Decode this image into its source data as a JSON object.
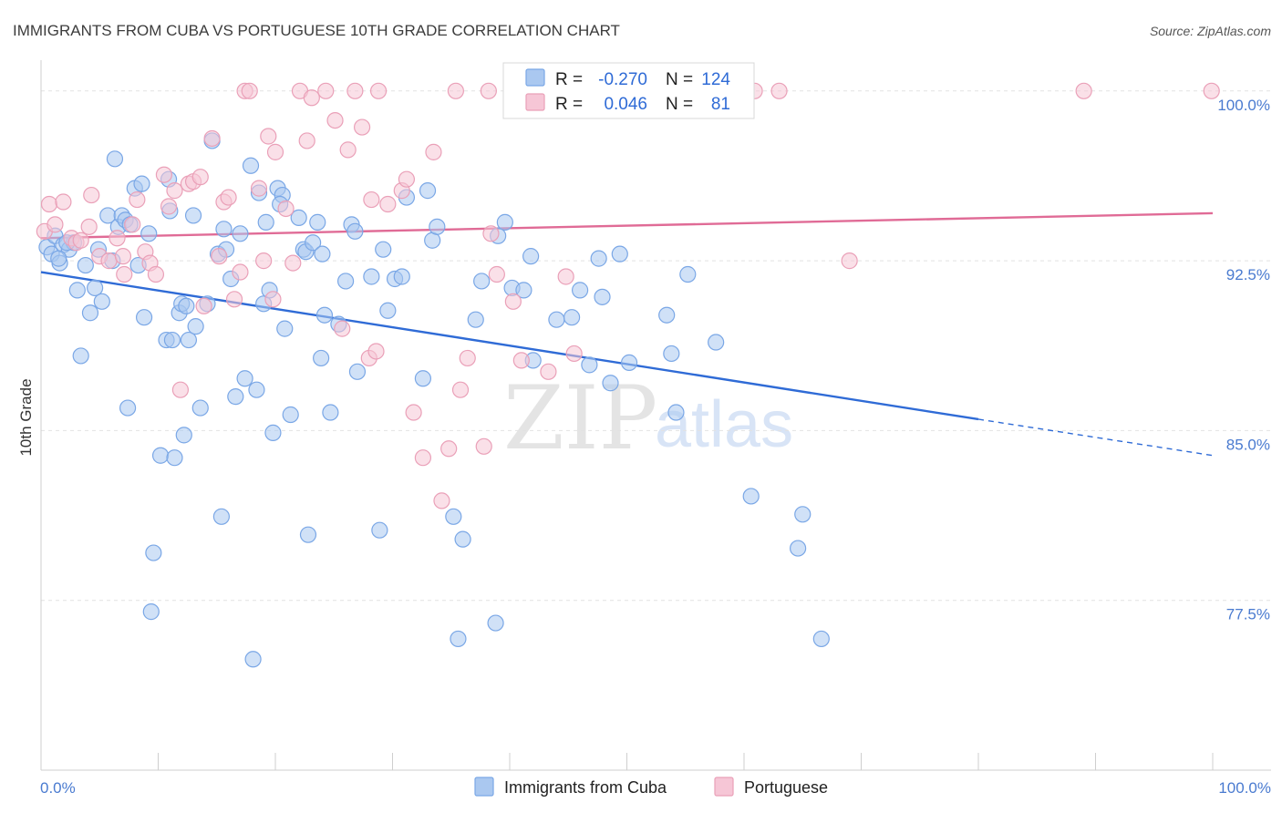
{
  "chart_data": {
    "type": "scatter",
    "title": "IMMIGRANTS FROM CUBA VS PORTUGUESE 10TH GRADE CORRELATION CHART",
    "source": "Source: ZipAtlas.com",
    "ylabel": "10th Grade",
    "xlabel": "",
    "xlim": [
      0,
      100
    ],
    "ylim": [
      70,
      101.2
    ],
    "y_ticks": [
      {
        "value": 100,
        "label": "100.0%"
      },
      {
        "value": 92.5,
        "label": "92.5%"
      },
      {
        "value": 85,
        "label": "85.0%"
      },
      {
        "value": 77.5,
        "label": "77.5%"
      }
    ],
    "x_tick_labels": {
      "min": "0.0%",
      "max": "100.0%"
    },
    "watermark": {
      "zip": "ZIP",
      "atlas": "atlas"
    },
    "legend": {
      "r_label": "R =",
      "n_label": "N =",
      "entries": [
        {
          "r": "-0.270",
          "n": "124"
        },
        {
          "r": "0.046",
          "n": "81"
        }
      ]
    },
    "series": [
      {
        "name": "Immigrants from Cuba",
        "color": "#7aa7e6",
        "fill": "#aac8f0",
        "trend": {
          "x0": 0,
          "y0": 92.0,
          "x1": 80,
          "y1": 85.5,
          "dash_to_x": 100,
          "dash_to_y": 83.9,
          "color": "#2f6bd6"
        },
        "points": [
          [
            0.5,
            93.1
          ],
          [
            0.9,
            92.8
          ],
          [
            1.2,
            93.6
          ],
          [
            1.6,
            92.4
          ],
          [
            1.9,
            93.2
          ],
          [
            2.4,
            93.0
          ],
          [
            2.8,
            93.3
          ],
          [
            3.1,
            91.2
          ],
          [
            3.4,
            88.3
          ],
          [
            3.8,
            92.3
          ],
          [
            4.2,
            90.2
          ],
          [
            4.6,
            91.3
          ],
          [
            4.9,
            93.0
          ],
          [
            5.2,
            90.7
          ],
          [
            5.7,
            94.5
          ],
          [
            6.1,
            92.5
          ],
          [
            6.3,
            97.0
          ],
          [
            6.6,
            94.0
          ],
          [
            6.9,
            94.5
          ],
          [
            7.2,
            94.3
          ],
          [
            7.6,
            94.1
          ],
          [
            7.4,
            86.0
          ],
          [
            8.0,
            95.7
          ],
          [
            8.3,
            92.3
          ],
          [
            8.6,
            95.9
          ],
          [
            8.8,
            90.0
          ],
          [
            9.2,
            93.7
          ],
          [
            9.6,
            79.6
          ],
          [
            9.4,
            77.0
          ],
          [
            10.2,
            83.9
          ],
          [
            10.7,
            89.0
          ],
          [
            10.9,
            96.1
          ],
          [
            11.0,
            94.7
          ],
          [
            11.2,
            89.0
          ],
          [
            11.4,
            83.8
          ],
          [
            11.8,
            90.2
          ],
          [
            12.0,
            90.6
          ],
          [
            12.2,
            84.8
          ],
          [
            12.6,
            89.0
          ],
          [
            13.0,
            94.5
          ],
          [
            13.2,
            89.6
          ],
          [
            13.6,
            86.0
          ],
          [
            14.2,
            90.6
          ],
          [
            14.6,
            97.8
          ],
          [
            15.1,
            92.8
          ],
          [
            15.4,
            81.2
          ],
          [
            15.6,
            93.9
          ],
          [
            15.8,
            93.0
          ],
          [
            16.2,
            91.7
          ],
          [
            16.6,
            86.5
          ],
          [
            17.0,
            93.7
          ],
          [
            17.4,
            87.3
          ],
          [
            17.9,
            96.7
          ],
          [
            18.1,
            74.9
          ],
          [
            18.4,
            86.8
          ],
          [
            18.6,
            95.5
          ],
          [
            19.0,
            90.6
          ],
          [
            19.2,
            94.2
          ],
          [
            19.5,
            91.2
          ],
          [
            19.8,
            84.9
          ],
          [
            20.2,
            95.7
          ],
          [
            20.6,
            95.4
          ],
          [
            20.4,
            95.0
          ],
          [
            20.8,
            89.5
          ],
          [
            21.3,
            85.7
          ],
          [
            22.0,
            94.4
          ],
          [
            22.4,
            93.0
          ],
          [
            22.6,
            92.9
          ],
          [
            22.8,
            80.4
          ],
          [
            23.2,
            93.3
          ],
          [
            23.6,
            94.2
          ],
          [
            23.9,
            88.2
          ],
          [
            24.2,
            90.1
          ],
          [
            24.7,
            85.8
          ],
          [
            25.4,
            89.7
          ],
          [
            26.0,
            91.6
          ],
          [
            26.5,
            94.1
          ],
          [
            26.8,
            93.8
          ],
          [
            27.0,
            87.6
          ],
          [
            28.2,
            91.8
          ],
          [
            28.9,
            80.6
          ],
          [
            29.2,
            93.0
          ],
          [
            29.6,
            90.3
          ],
          [
            30.2,
            91.7
          ],
          [
            30.8,
            91.8
          ],
          [
            31.2,
            95.3
          ],
          [
            33.0,
            95.6
          ],
          [
            32.6,
            87.3
          ],
          [
            33.4,
            93.4
          ],
          [
            33.8,
            94.0
          ],
          [
            35.2,
            81.2
          ],
          [
            35.6,
            75.8
          ],
          [
            36.0,
            80.2
          ],
          [
            37.1,
            89.9
          ],
          [
            37.6,
            91.6
          ],
          [
            39.0,
            93.6
          ],
          [
            39.6,
            94.2
          ],
          [
            38.8,
            76.5
          ],
          [
            40.2,
            91.3
          ],
          [
            41.2,
            91.2
          ],
          [
            41.8,
            92.7
          ],
          [
            42.0,
            88.1
          ],
          [
            44.0,
            89.9
          ],
          [
            45.3,
            90.0
          ],
          [
            46.0,
            91.2
          ],
          [
            46.8,
            87.9
          ],
          [
            47.6,
            92.6
          ],
          [
            47.9,
            90.9
          ],
          [
            48.6,
            87.1
          ],
          [
            49.4,
            92.8
          ],
          [
            50.2,
            88.0
          ],
          [
            53.4,
            90.1
          ],
          [
            53.8,
            88.4
          ],
          [
            54.2,
            85.8
          ],
          [
            55.2,
            91.9
          ],
          [
            57.6,
            88.9
          ],
          [
            60.6,
            82.1
          ],
          [
            64.6,
            79.8
          ],
          [
            65.0,
            81.3
          ],
          [
            66.6,
            75.8
          ],
          [
            1.5,
            92.6
          ],
          [
            2.2,
            93.3
          ],
          [
            12.4,
            90.5
          ],
          [
            24.0,
            92.8
          ]
        ]
      },
      {
        "name": "Portuguese",
        "color": "#eaa0b8",
        "fill": "#f6c6d6",
        "trend": {
          "x0": 0,
          "y0": 93.5,
          "x1": 100,
          "y1": 94.6,
          "color": "#e06b96"
        },
        "points": [
          [
            0.3,
            93.8
          ],
          [
            0.7,
            95.0
          ],
          [
            1.2,
            94.1
          ],
          [
            1.9,
            95.1
          ],
          [
            2.6,
            93.5
          ],
          [
            3.0,
            93.3
          ],
          [
            3.4,
            93.4
          ],
          [
            4.1,
            94.0
          ],
          [
            4.3,
            95.4
          ],
          [
            5.0,
            92.7
          ],
          [
            5.8,
            92.5
          ],
          [
            6.5,
            93.5
          ],
          [
            7.0,
            92.7
          ],
          [
            7.1,
            91.9
          ],
          [
            7.8,
            94.1
          ],
          [
            8.2,
            95.2
          ],
          [
            8.9,
            92.9
          ],
          [
            9.3,
            92.4
          ],
          [
            9.8,
            91.9
          ],
          [
            10.5,
            96.3
          ],
          [
            10.9,
            94.9
          ],
          [
            11.4,
            95.6
          ],
          [
            11.9,
            86.8
          ],
          [
            12.6,
            95.9
          ],
          [
            13.0,
            96.0
          ],
          [
            13.6,
            96.2
          ],
          [
            13.9,
            90.5
          ],
          [
            14.6,
            97.9
          ],
          [
            15.2,
            92.7
          ],
          [
            15.6,
            95.1
          ],
          [
            16.0,
            95.3
          ],
          [
            16.5,
            90.8
          ],
          [
            17.0,
            92.0
          ],
          [
            17.4,
            100.0
          ],
          [
            17.8,
            100.0
          ],
          [
            18.6,
            95.7
          ],
          [
            19.0,
            92.5
          ],
          [
            19.4,
            98.0
          ],
          [
            19.8,
            90.8
          ],
          [
            20.0,
            97.3
          ],
          [
            20.9,
            94.8
          ],
          [
            21.5,
            92.4
          ],
          [
            22.1,
            100.0
          ],
          [
            22.7,
            97.8
          ],
          [
            23.1,
            99.7
          ],
          [
            24.3,
            100.0
          ],
          [
            25.1,
            98.7
          ],
          [
            25.7,
            89.5
          ],
          [
            26.2,
            97.4
          ],
          [
            26.8,
            100.0
          ],
          [
            27.4,
            98.4
          ],
          [
            28.0,
            88.2
          ],
          [
            28.8,
            100.0
          ],
          [
            28.6,
            88.5
          ],
          [
            28.2,
            95.2
          ],
          [
            29.6,
            95.0
          ],
          [
            30.8,
            95.6
          ],
          [
            31.2,
            96.1
          ],
          [
            31.8,
            85.8
          ],
          [
            32.6,
            83.8
          ],
          [
            33.5,
            97.3
          ],
          [
            34.2,
            81.9
          ],
          [
            34.8,
            84.2
          ],
          [
            35.4,
            100.0
          ],
          [
            35.8,
            86.8
          ],
          [
            36.4,
            88.2
          ],
          [
            37.8,
            84.3
          ],
          [
            38.4,
            93.7
          ],
          [
            38.2,
            100.0
          ],
          [
            38.9,
            91.9
          ],
          [
            40.3,
            90.7
          ],
          [
            41.0,
            88.1
          ],
          [
            43.3,
            87.6
          ],
          [
            44.8,
            91.8
          ],
          [
            45.5,
            88.4
          ],
          [
            48.7,
            100.0
          ],
          [
            60.9,
            100.0
          ],
          [
            63.0,
            100.0
          ],
          [
            69.0,
            92.5
          ],
          [
            89.0,
            100.0
          ],
          [
            99.9,
            100.0
          ]
        ]
      }
    ]
  }
}
